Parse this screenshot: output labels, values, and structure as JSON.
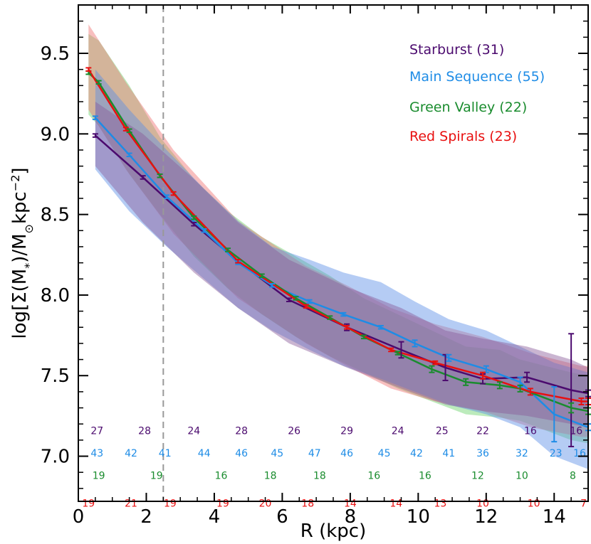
{
  "chart_data": {
    "type": "line",
    "xlabel": "R (kpc)",
    "ylabel_parts": {
      "pre": "log[Σ(M",
      "sub1": "*",
      "mid": ")/M",
      "sub2": "⊙",
      "post": "kpc",
      "sup": "−2",
      "end": "]"
    },
    "xlim": [
      0,
      15
    ],
    "ylim": [
      6.72,
      9.8
    ],
    "xticks": [
      0,
      2,
      4,
      6,
      8,
      10,
      12,
      14
    ],
    "yticks": [
      7.0,
      7.5,
      8.0,
      8.5,
      9.0,
      9.5
    ],
    "ytick_labels": [
      "7.0",
      "7.5",
      "8.0",
      "8.5",
      "9.0",
      "9.5"
    ],
    "vline_x": 2.5,
    "series": [
      {
        "name": "Starburst",
        "label": "Starburst (31)",
        "color": "#4b0a6e",
        "band_color": "#8a5a9a",
        "x": [
          0.5,
          1.9,
          3.4,
          4.7,
          6.2,
          7.9,
          9.5,
          10.8,
          11.9,
          13.2,
          14.5,
          15.0
        ],
        "y": [
          8.99,
          8.73,
          8.44,
          8.21,
          7.97,
          7.8,
          7.66,
          7.55,
          7.48,
          7.49,
          7.41,
          7.39
        ],
        "err": [
          0.01,
          0.01,
          0.01,
          0.01,
          0.01,
          0.02,
          0.05,
          0.08,
          0.03,
          0.03,
          0.35,
          0.02
        ],
        "band_hi": [
          9.2,
          9.0,
          8.72,
          8.45,
          8.22,
          8.05,
          7.92,
          7.78,
          7.73,
          7.68,
          7.6,
          7.55
        ],
        "band_lo": [
          8.8,
          8.45,
          8.14,
          7.92,
          7.7,
          7.55,
          7.42,
          7.32,
          7.28,
          7.25,
          7.2,
          7.18
        ]
      },
      {
        "name": "Main Sequence",
        "label": "Main Sequence (55)",
        "color": "#1e8ce6",
        "band_color": "#5a8ee6",
        "x": [
          0.5,
          1.5,
          2.6,
          3.7,
          4.7,
          5.7,
          6.8,
          7.8,
          8.9,
          9.9,
          10.9,
          12.0,
          13.0,
          14.0,
          15.0
        ],
        "y": [
          9.1,
          8.87,
          8.61,
          8.4,
          8.2,
          8.06,
          7.96,
          7.88,
          7.8,
          7.7,
          7.61,
          7.54,
          7.46,
          7.26,
          7.18
        ],
        "err": [
          0.01,
          0.01,
          0.01,
          0.01,
          0.01,
          0.01,
          0.01,
          0.01,
          0.01,
          0.02,
          0.02,
          0.02,
          0.03,
          0.17,
          0.02
        ],
        "band_hi": [
          9.4,
          9.15,
          8.9,
          8.66,
          8.46,
          8.3,
          8.22,
          8.14,
          8.08,
          7.96,
          7.85,
          7.78,
          7.68,
          7.58,
          7.52
        ],
        "band_lo": [
          8.78,
          8.52,
          8.3,
          8.1,
          7.92,
          7.78,
          7.66,
          7.56,
          7.48,
          7.4,
          7.32,
          7.26,
          7.18,
          7.0,
          6.92
        ]
      },
      {
        "name": "Green Valley",
        "label": "Green Valley (22)",
        "color": "#1a8c2e",
        "band_color": "#6ad26a",
        "x": [
          0.3,
          0.6,
          1.5,
          2.4,
          3.4,
          4.4,
          5.4,
          6.4,
          7.4,
          8.4,
          9.4,
          10.4,
          11.4,
          12.4,
          13.0,
          14.5,
          15.0
        ],
        "y": [
          9.38,
          9.32,
          9.02,
          8.74,
          8.48,
          8.28,
          8.12,
          7.98,
          7.86,
          7.74,
          7.64,
          7.54,
          7.46,
          7.44,
          7.42,
          7.3,
          7.28
        ],
        "err": [
          0.01,
          0.01,
          0.01,
          0.01,
          0.01,
          0.01,
          0.01,
          0.01,
          0.01,
          0.01,
          0.01,
          0.02,
          0.02,
          0.02,
          0.02,
          0.03,
          0.02
        ],
        "band_hi": [
          9.62,
          9.58,
          9.3,
          8.98,
          8.72,
          8.52,
          8.36,
          8.24,
          8.12,
          7.98,
          7.88,
          7.78,
          7.68,
          7.66,
          7.6,
          7.52,
          7.5
        ],
        "band_lo": [
          9.12,
          9.05,
          8.75,
          8.5,
          8.24,
          8.04,
          7.88,
          7.74,
          7.62,
          7.52,
          7.42,
          7.34,
          7.26,
          7.24,
          7.22,
          7.1,
          7.08
        ]
      },
      {
        "name": "Red Spirals",
        "label": "Red Spirals (23)",
        "color": "#e81010",
        "band_color": "#f07070",
        "x": [
          0.3,
          1.4,
          2.8,
          4.7,
          6.7,
          7.9,
          9.2,
          10.5,
          11.9,
          13.3,
          14.8,
          15.0
        ],
        "y": [
          9.4,
          9.03,
          8.63,
          8.21,
          7.93,
          7.8,
          7.66,
          7.58,
          7.5,
          7.4,
          7.34,
          7.34
        ],
        "err": [
          0.01,
          0.01,
          0.01,
          0.01,
          0.01,
          0.01,
          0.01,
          0.01,
          0.02,
          0.02,
          0.02,
          0.02
        ],
        "band_hi": [
          9.68,
          9.32,
          8.9,
          8.46,
          8.18,
          8.06,
          7.92,
          7.82,
          7.74,
          7.64,
          7.56,
          7.56
        ],
        "band_lo": [
          9.15,
          8.78,
          8.38,
          7.98,
          7.7,
          7.56,
          7.42,
          7.34,
          7.28,
          7.18,
          7.12,
          7.12
        ]
      }
    ],
    "counts": [
      {
        "series": "Starburst",
        "y": 7.16,
        "items": [
          {
            "x": 0.55,
            "t": "27"
          },
          {
            "x": 1.95,
            "t": "28"
          },
          {
            "x": 3.4,
            "t": "24"
          },
          {
            "x": 4.8,
            "t": "28"
          },
          {
            "x": 6.35,
            "t": "26"
          },
          {
            "x": 7.9,
            "t": "29"
          },
          {
            "x": 9.4,
            "t": "24"
          },
          {
            "x": 10.7,
            "t": "25"
          },
          {
            "x": 11.9,
            "t": "22"
          },
          {
            "x": 13.3,
            "t": "16"
          },
          {
            "x": 14.65,
            "t": "16"
          }
        ]
      },
      {
        "series": "Main Sequence",
        "y": 7.02,
        "items": [
          {
            "x": 0.55,
            "t": "43"
          },
          {
            "x": 1.55,
            "t": "42"
          },
          {
            "x": 2.55,
            "t": "41"
          },
          {
            "x": 3.7,
            "t": "44"
          },
          {
            "x": 4.8,
            "t": "46"
          },
          {
            "x": 5.85,
            "t": "45"
          },
          {
            "x": 6.95,
            "t": "47"
          },
          {
            "x": 7.9,
            "t": "46"
          },
          {
            "x": 9.0,
            "t": "45"
          },
          {
            "x": 9.95,
            "t": "42"
          },
          {
            "x": 10.9,
            "t": "41"
          },
          {
            "x": 11.9,
            "t": "36"
          },
          {
            "x": 13.05,
            "t": "32"
          },
          {
            "x": 14.05,
            "t": "23"
          },
          {
            "x": 14.75,
            "t": "16"
          }
        ]
      },
      {
        "series": "Green Valley",
        "y": 6.88,
        "items": [
          {
            "x": 0.6,
            "t": "19"
          },
          {
            "x": 2.3,
            "t": "19"
          },
          {
            "x": 4.2,
            "t": "16"
          },
          {
            "x": 5.65,
            "t": "18"
          },
          {
            "x": 7.1,
            "t": "18"
          },
          {
            "x": 8.7,
            "t": "16"
          },
          {
            "x": 10.2,
            "t": "16"
          },
          {
            "x": 11.75,
            "t": "12"
          },
          {
            "x": 13.05,
            "t": "10"
          },
          {
            "x": 14.55,
            "t": "8"
          }
        ]
      },
      {
        "series": "Red Spirals",
        "y": 6.71,
        "items": [
          {
            "x": 0.3,
            "t": "19"
          },
          {
            "x": 1.55,
            "t": "21"
          },
          {
            "x": 2.7,
            "t": "19"
          },
          {
            "x": 4.25,
            "t": "19"
          },
          {
            "x": 5.5,
            "t": "20"
          },
          {
            "x": 6.75,
            "t": "18"
          },
          {
            "x": 8.0,
            "t": "14"
          },
          {
            "x": 9.35,
            "t": "14"
          },
          {
            "x": 10.65,
            "t": "13"
          },
          {
            "x": 11.9,
            "t": "10"
          },
          {
            "x": 13.4,
            "t": "10"
          },
          {
            "x": 15.0,
            "t": "7"
          }
        ]
      }
    ]
  }
}
